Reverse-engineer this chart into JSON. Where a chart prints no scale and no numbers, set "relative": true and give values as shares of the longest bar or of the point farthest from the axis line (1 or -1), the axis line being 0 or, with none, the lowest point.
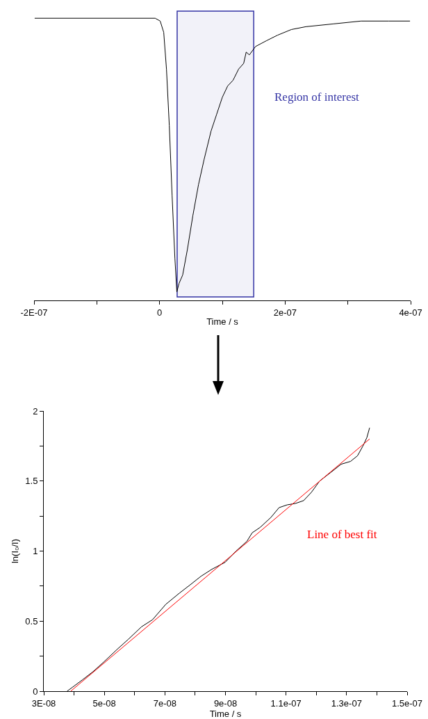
{
  "chart_data": [
    {
      "type": "line",
      "relative": true,
      "xlabel": "Time / s",
      "tick_labels": "x",
      "xlim": [
        -2e-07,
        4e-07
      ],
      "xticks": [
        {
          "value": -2e-07,
          "label": "-2E-07"
        },
        {
          "value": -1e-07,
          "label": null
        },
        0,
        {
          "value": 1e-07,
          "label": null
        },
        {
          "value": 2e-07,
          "label": "2e-07"
        },
        {
          "value": 3e-07,
          "label": null
        },
        {
          "value": 4e-07,
          "label": "4e-07"
        }
      ],
      "series": [
        {
          "color": "#000000",
          "x": [
            -1.99e-07,
            -7e-09,
            1e-09,
            6.6e-09,
            1.1e-08,
            1.55e-08,
            2e-08,
            2.44e-08,
            2.75e-08,
            3.1e-08,
            3.68e-08,
            4.43e-08,
            5.3e-08,
            6.2e-08,
            7.1e-08,
            8.2e-08,
            9.1e-08,
            1e-07,
            1.085e-07,
            1.17e-07,
            1.26e-07,
            1.34e-07,
            1.38e-07,
            1.43e-07,
            1.53e-07,
            1.7e-07,
            1.88e-07,
            2.1e-07,
            2.33e-07,
            2.77e-07,
            3.21e-07,
            3.65e-07,
            3.99e-07
          ],
          "values": [
            1.0,
            1.0,
            0.99,
            0.95,
            0.82,
            0.62,
            0.37,
            0.15,
            0.03,
            0.06,
            0.09,
            0.18,
            0.3,
            0.41,
            0.5,
            0.6,
            0.66,
            0.72,
            0.76,
            0.78,
            0.82,
            0.84,
            0.88,
            0.87,
            0.9,
            0.92,
            0.94,
            0.96,
            0.97,
            0.98,
            0.99,
            0.99,
            0.99
          ]
        }
      ],
      "bands": [
        {
          "axis": "x",
          "from": 2.8e-08,
          "to": 1.5e-07,
          "label": "Region of interest",
          "color": "#3535a5"
        }
      ]
    },
    {
      "type": "line",
      "xlabel": "Time / s",
      "ylabel": "ln(I₀/I)",
      "xlim": [
        3e-08,
        1.5e-07
      ],
      "xticks": [
        {
          "value": 3e-08,
          "label": "3E-08"
        },
        {
          "value": 4e-08,
          "label": null
        },
        {
          "value": 5e-08,
          "label": "5e-08"
        },
        {
          "value": 6e-08,
          "label": null
        },
        {
          "value": 7e-08,
          "label": "7e-08"
        },
        {
          "value": 8e-08,
          "label": null
        },
        {
          "value": 9e-08,
          "label": "9e-08"
        },
        {
          "value": 1e-07,
          "label": null
        },
        {
          "value": 1.1e-07,
          "label": "1.1e-07"
        },
        {
          "value": 1.2e-07,
          "label": null
        },
        {
          "value": 1.3e-07,
          "label": "1.3e-07"
        },
        {
          "value": 1.4e-07,
          "label": null
        },
        {
          "value": 1.5e-07,
          "label": "1.5e-07"
        }
      ],
      "ylim": [
        0,
        2
      ],
      "yticks": [
        0,
        {
          "value": 0.25,
          "label": null
        },
        0.5,
        {
          "value": 0.75,
          "label": null
        },
        1,
        {
          "value": 1.25,
          "label": null
        },
        1.5,
        {
          "value": 1.75,
          "label": null
        },
        2
      ],
      "series": [
        {
          "color": "#000000",
          "x": [
            3.77e-08,
            3.96e-08,
            4.27e-08,
            4.63e-08,
            4.99e-08,
            5.43e-08,
            5.79e-08,
            6.23e-08,
            6.59e-08,
            7.03e-08,
            7.48e-08,
            7.84e-08,
            8.19e-08,
            8.55e-08,
            8.99e-08,
            9.35e-08,
            9.71e-08,
            9.88e-08,
            1.015e-07,
            1.05e-07,
            1.077e-07,
            1.104e-07,
            1.131e-07,
            1.158e-07,
            1.184e-07,
            1.211e-07,
            1.247e-07,
            1.282e-07,
            1.313e-07,
            1.336e-07,
            1.354e-07,
            1.367e-07,
            1.376e-07
          ],
          "values": [
            0,
            0.03,
            0.08,
            0.14,
            0.21,
            0.3,
            0.37,
            0.46,
            0.51,
            0.62,
            0.7,
            0.76,
            0.82,
            0.87,
            0.92,
            1.0,
            1.07,
            1.13,
            1.17,
            1.24,
            1.31,
            1.33,
            1.34,
            1.36,
            1.42,
            1.5,
            1.56,
            1.62,
            1.64,
            1.68,
            1.75,
            1.81,
            1.88
          ]
        },
        {
          "color": "#ff0000",
          "x": [
            3.89e-08,
            1.376e-07
          ],
          "values": [
            0,
            1.8
          ]
        }
      ],
      "annotations": [
        "Line of best fit"
      ]
    }
  ]
}
